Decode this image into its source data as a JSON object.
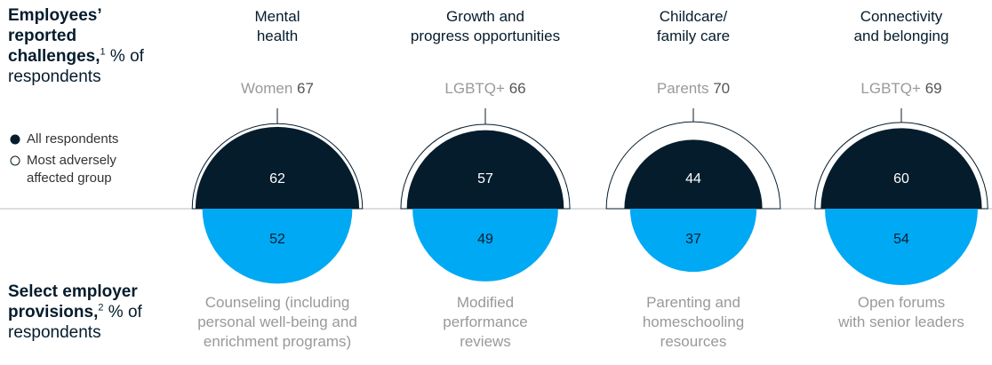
{
  "chart_data": {
    "type": "split-semicircle",
    "top_label": {
      "title": "Employees’ reported challenges,",
      "note": "1",
      "unit": "% of respondents"
    },
    "bottom_label": {
      "title": "Select employer provisions,",
      "note": "2",
      "unit": "% of respondents"
    },
    "categories": [
      [
        "Mental",
        "health"
      ],
      [
        "Growth and",
        "progress opportunities"
      ],
      [
        "Childcare/",
        "family care"
      ],
      [
        "Connectivity",
        "and belonging"
      ]
    ],
    "series": [
      {
        "name": "All respondents",
        "color": "#051c2c",
        "values": [
          62,
          57,
          44,
          60
        ]
      },
      {
        "name": "Most adversely affected group",
        "color": "#ffffff",
        "values": [
          67,
          66,
          70,
          69
        ],
        "groups": [
          "Women",
          "LGBTQ+",
          "Parents",
          "LGBTQ+"
        ]
      }
    ],
    "provisions": {
      "color": "#00a9f4",
      "values": [
        52,
        49,
        37,
        54
      ],
      "labels": [
        [
          "Counseling (including",
          "personal well-being and",
          "enrichment programs)"
        ],
        [
          "Modified",
          "performance",
          "reviews"
        ],
        [
          "Parenting and",
          "homeschooling",
          "resources"
        ],
        [
          "Open forums",
          "with senior leaders"
        ]
      ]
    }
  }
}
